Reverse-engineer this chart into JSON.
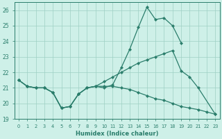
{
  "xlabel": "Humidex (Indice chaleur)",
  "line1_x": [
    0,
    1,
    2,
    3,
    4,
    5,
    6,
    7,
    8,
    9,
    10,
    11,
    12,
    13,
    14,
    15,
    16,
    17,
    18,
    19
  ],
  "line1_y": [
    21.5,
    21.1,
    21.0,
    21.0,
    20.7,
    19.7,
    19.8,
    20.6,
    21.0,
    21.1,
    21.0,
    21.2,
    22.3,
    23.5,
    24.9,
    26.2,
    25.4,
    25.5,
    25.0,
    23.9
  ],
  "line2_x": [
    0,
    1,
    2,
    3,
    4,
    5,
    6,
    7,
    8,
    9,
    10,
    11,
    12,
    13,
    14,
    15,
    16,
    17,
    18,
    19,
    20,
    21,
    23
  ],
  "line2_y": [
    21.5,
    21.1,
    21.0,
    21.0,
    20.7,
    19.7,
    19.8,
    20.6,
    21.0,
    21.1,
    21.4,
    21.7,
    22.0,
    22.3,
    22.6,
    22.8,
    23.0,
    23.2,
    23.4,
    22.1,
    21.7,
    21.0,
    19.3
  ],
  "line3_x": [
    0,
    1,
    2,
    3,
    4,
    5,
    6,
    7,
    8,
    9,
    10,
    11,
    12,
    13,
    14,
    15,
    16,
    17,
    18,
    19,
    20,
    21,
    22,
    23
  ],
  "line3_y": [
    21.5,
    21.1,
    21.0,
    21.0,
    20.7,
    19.7,
    19.8,
    20.6,
    21.0,
    21.1,
    21.1,
    21.1,
    21.0,
    20.9,
    20.7,
    20.5,
    20.3,
    20.2,
    20.0,
    19.8,
    19.7,
    19.6,
    19.45,
    19.3
  ],
  "ylim": [
    19.0,
    26.5
  ],
  "yticks": [
    19,
    20,
    21,
    22,
    23,
    24,
    25,
    26
  ],
  "line_color": "#2a7d6b",
  "bg_color": "#cef0e8",
  "grid_color": "#9ecfc4"
}
